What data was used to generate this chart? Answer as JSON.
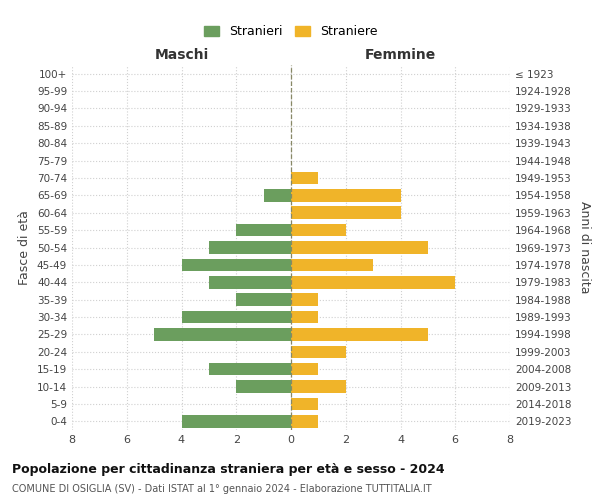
{
  "age_groups": [
    "0-4",
    "5-9",
    "10-14",
    "15-19",
    "20-24",
    "25-29",
    "30-34",
    "35-39",
    "40-44",
    "45-49",
    "50-54",
    "55-59",
    "60-64",
    "65-69",
    "70-74",
    "75-79",
    "80-84",
    "85-89",
    "90-94",
    "95-99",
    "100+"
  ],
  "birth_years": [
    "2019-2023",
    "2014-2018",
    "2009-2013",
    "2004-2008",
    "1999-2003",
    "1994-1998",
    "1989-1993",
    "1984-1988",
    "1979-1983",
    "1974-1978",
    "1969-1973",
    "1964-1968",
    "1959-1963",
    "1954-1958",
    "1949-1953",
    "1944-1948",
    "1939-1943",
    "1934-1938",
    "1929-1933",
    "1924-1928",
    "≤ 1923"
  ],
  "males": [
    4,
    0,
    2,
    3,
    0,
    5,
    4,
    2,
    3,
    4,
    3,
    2,
    0,
    1,
    0,
    0,
    0,
    0,
    0,
    0,
    0
  ],
  "females": [
    1,
    1,
    2,
    1,
    2,
    5,
    1,
    1,
    6,
    3,
    5,
    2,
    4,
    4,
    1,
    0,
    0,
    0,
    0,
    0,
    0
  ],
  "male_color": "#6b9e5e",
  "female_color": "#f0b429",
  "title": "Popolazione per cittadinanza straniera per età e sesso - 2024",
  "subtitle": "COMUNE DI OSIGLIA (SV) - Dati ISTAT al 1° gennaio 2024 - Elaborazione TUTTITALIA.IT",
  "xlabel_left": "Maschi",
  "xlabel_right": "Femmine",
  "ylabel_left": "Fasce di età",
  "ylabel_right": "Anni di nascita",
  "legend_males": "Stranieri",
  "legend_females": "Straniere",
  "xlim": 8,
  "background_color": "#ffffff",
  "grid_color": "#d0d0d0"
}
